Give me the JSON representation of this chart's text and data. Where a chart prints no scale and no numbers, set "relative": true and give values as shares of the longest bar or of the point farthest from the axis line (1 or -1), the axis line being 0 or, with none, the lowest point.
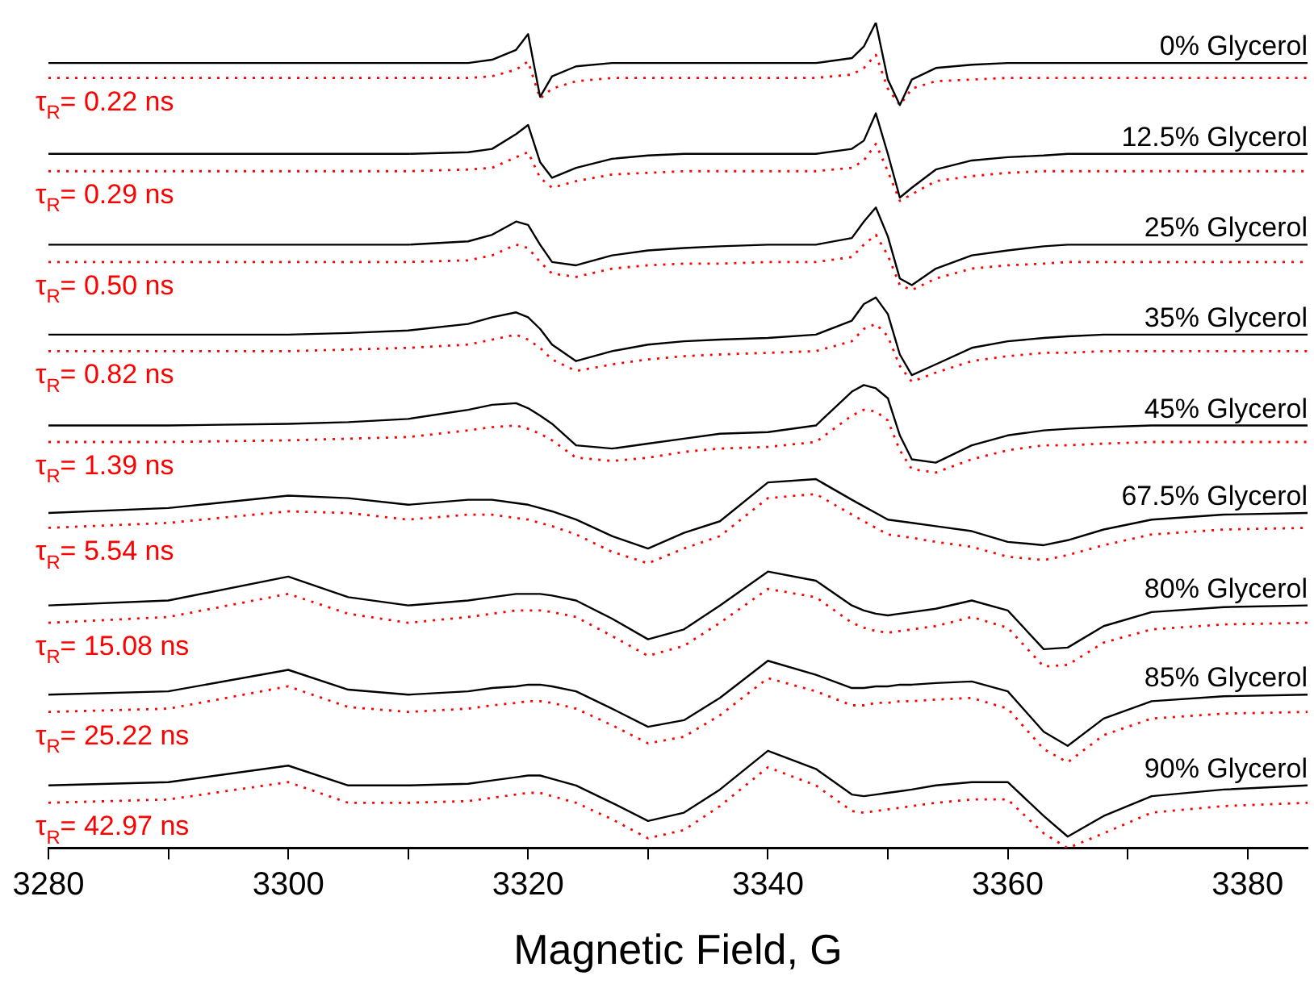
{
  "chart_data": {
    "type": "line",
    "relative": true,
    "xlabel": "Magnetic Field, G",
    "xlim": [
      3280,
      3385
    ],
    "xticks": [
      3280,
      {
        "value": 3290,
        "label": null
      },
      3300,
      {
        "value": 3310,
        "label": null
      },
      3320,
      {
        "value": 3330,
        "label": null
      },
      3340,
      {
        "value": 3350,
        "label": null
      },
      3360,
      {
        "value": 3370,
        "label": null
      },
      3380
    ],
    "x": [
      3280,
      3290,
      3300,
      3305,
      3310,
      3315,
      3317,
      3319,
      3320,
      3321,
      3322,
      3324,
      3327,
      3330,
      3333,
      3336,
      3340,
      3344,
      3347,
      3348,
      3349,
      3350,
      3351,
      3352,
      3354,
      3357,
      3360,
      3363,
      3365,
      3368,
      3372,
      3378,
      3385
    ],
    "legend": false,
    "grid": false,
    "marker": "none",
    "series": [
      {
        "name": "0% Glycerol",
        "color": "#000000",
        "line_style": "solid",
        "values": [
          0.951,
          0.951,
          0.951,
          0.951,
          0.951,
          0.951,
          0.955,
          0.967,
          0.986,
          0.91,
          0.935,
          0.947,
          0.951,
          0.951,
          0.951,
          0.951,
          0.951,
          0.951,
          0.957,
          0.971,
          1,
          0.931,
          0.9,
          0.931,
          0.945,
          0.949,
          0.951,
          0.951,
          0.951,
          0.951,
          0.951,
          0.951,
          0.951
        ]
      },
      {
        "name": "τ$_{R}$= 0.22 ns",
        "color": "#ff0000",
        "line_style": "dotted",
        "values": [
          0.933,
          0.933,
          0.933,
          0.933,
          0.933,
          0.933,
          0.935,
          0.943,
          0.953,
          0.908,
          0.92,
          0.929,
          0.933,
          0.933,
          0.933,
          0.933,
          0.933,
          0.933,
          0.937,
          0.945,
          0.961,
          0.92,
          0.9,
          0.92,
          0.929,
          0.931,
          0.933,
          0.933,
          0.933,
          0.933,
          0.933,
          0.933,
          0.933
        ]
      },
      {
        "name": "12.5% Glycerol",
        "color": "#000000",
        "line_style": "solid",
        "values": [
          0.841,
          0.841,
          0.841,
          0.841,
          0.841,
          0.843,
          0.847,
          0.865,
          0.876,
          0.831,
          0.812,
          0.824,
          0.835,
          0.839,
          0.841,
          0.841,
          0.841,
          0.841,
          0.847,
          0.857,
          0.89,
          0.841,
          0.788,
          0.8,
          0.822,
          0.833,
          0.837,
          0.839,
          0.841,
          0.841,
          0.841,
          0.841,
          0.841
        ]
      },
      {
        "name": "τ$_{R}$= 0.29 ns",
        "color": "#ff0000",
        "line_style": "dotted",
        "values": [
          0.82,
          0.82,
          0.82,
          0.82,
          0.82,
          0.822,
          0.824,
          0.837,
          0.843,
          0.812,
          0.8,
          0.808,
          0.816,
          0.818,
          0.82,
          0.82,
          0.82,
          0.82,
          0.824,
          0.833,
          0.853,
          0.82,
          0.784,
          0.792,
          0.808,
          0.814,
          0.818,
          0.82,
          0.82,
          0.82,
          0.82,
          0.82,
          0.82
        ]
      },
      {
        "name": "25% Glycerol",
        "color": "#000000",
        "line_style": "solid",
        "values": [
          0.731,
          0.731,
          0.731,
          0.731,
          0.731,
          0.735,
          0.743,
          0.759,
          0.755,
          0.731,
          0.71,
          0.706,
          0.718,
          0.724,
          0.727,
          0.729,
          0.731,
          0.731,
          0.739,
          0.759,
          0.776,
          0.741,
          0.69,
          0.682,
          0.702,
          0.718,
          0.724,
          0.729,
          0.731,
          0.731,
          0.731,
          0.731,
          0.731
        ]
      },
      {
        "name": "τ$_{R}$= 0.50 ns",
        "color": "#ff0000",
        "line_style": "dotted",
        "values": [
          0.71,
          0.71,
          0.71,
          0.71,
          0.71,
          0.712,
          0.718,
          0.731,
          0.727,
          0.71,
          0.696,
          0.692,
          0.702,
          0.706,
          0.708,
          0.708,
          0.71,
          0.71,
          0.716,
          0.731,
          0.743,
          0.718,
          0.682,
          0.676,
          0.69,
          0.702,
          0.706,
          0.708,
          0.71,
          0.71,
          0.71,
          0.71,
          0.71
        ]
      },
      {
        "name": "35% Glycerol",
        "color": "#000000",
        "line_style": "solid",
        "values": [
          0.622,
          0.622,
          0.622,
          0.624,
          0.627,
          0.635,
          0.643,
          0.649,
          0.643,
          0.629,
          0.61,
          0.59,
          0.602,
          0.61,
          0.614,
          0.616,
          0.618,
          0.622,
          0.639,
          0.659,
          0.667,
          0.647,
          0.598,
          0.573,
          0.586,
          0.606,
          0.614,
          0.618,
          0.62,
          0.622,
          0.622,
          0.622,
          0.622
        ]
      },
      {
        "name": "τ$_{R}$= 0.82 ns",
        "color": "#ff0000",
        "line_style": "dotted",
        "values": [
          0.602,
          0.602,
          0.602,
          0.604,
          0.606,
          0.61,
          0.616,
          0.622,
          0.616,
          0.606,
          0.592,
          0.578,
          0.586,
          0.592,
          0.596,
          0.598,
          0.6,
          0.602,
          0.614,
          0.629,
          0.635,
          0.62,
          0.584,
          0.565,
          0.576,
          0.59,
          0.596,
          0.6,
          0.6,
          0.602,
          0.602,
          0.602,
          0.602
        ]
      },
      {
        "name": "45% Glycerol",
        "color": "#000000",
        "line_style": "solid",
        "values": [
          0.512,
          0.512,
          0.514,
          0.516,
          0.52,
          0.531,
          0.537,
          0.539,
          0.533,
          0.524,
          0.514,
          0.488,
          0.484,
          0.49,
          0.496,
          0.502,
          0.504,
          0.512,
          0.553,
          0.561,
          0.557,
          0.545,
          0.5,
          0.471,
          0.467,
          0.488,
          0.5,
          0.506,
          0.508,
          0.51,
          0.512,
          0.512,
          0.512
        ]
      },
      {
        "name": "τ$_{R}$= 1.39 ns",
        "color": "#ff0000",
        "line_style": "dotted",
        "values": [
          0.492,
          0.492,
          0.494,
          0.496,
          0.498,
          0.506,
          0.51,
          0.512,
          0.508,
          0.502,
          0.494,
          0.473,
          0.469,
          0.473,
          0.48,
          0.484,
          0.486,
          0.492,
          0.524,
          0.531,
          0.529,
          0.518,
          0.482,
          0.459,
          0.455,
          0.471,
          0.482,
          0.488,
          0.488,
          0.49,
          0.492,
          0.492,
          0.492
        ]
      },
      {
        "name": "67.5% Glycerol",
        "color": "#000000",
        "line_style": "solid",
        "values": [
          0.406,
          0.412,
          0.427,
          0.424,
          0.416,
          0.422,
          0.422,
          0.418,
          0.416,
          0.412,
          0.408,
          0.398,
          0.378,
          0.363,
          0.382,
          0.396,
          0.443,
          0.447,
          0.422,
          0.414,
          0.406,
          0.398,
          0.396,
          0.394,
          0.39,
          0.384,
          0.371,
          0.367,
          0.373,
          0.386,
          0.398,
          0.404,
          0.406
        ]
      },
      {
        "name": "τ$_{R}$= 5.54 ns",
        "color": "#ff0000",
        "line_style": "dotted",
        "values": [
          0.388,
          0.394,
          0.408,
          0.406,
          0.398,
          0.404,
          0.404,
          0.4,
          0.398,
          0.394,
          0.39,
          0.38,
          0.359,
          0.345,
          0.363,
          0.378,
          0.424,
          0.429,
          0.404,
          0.396,
          0.388,
          0.38,
          0.378,
          0.376,
          0.371,
          0.365,
          0.353,
          0.349,
          0.355,
          0.367,
          0.38,
          0.386,
          0.388
        ]
      },
      {
        "name": "80% Glycerol",
        "color": "#000000",
        "line_style": "solid",
        "values": [
          0.294,
          0.3,
          0.329,
          0.304,
          0.294,
          0.3,
          0.304,
          0.308,
          0.308,
          0.308,
          0.306,
          0.3,
          0.278,
          0.253,
          0.265,
          0.294,
          0.335,
          0.324,
          0.294,
          0.288,
          0.284,
          0.282,
          0.284,
          0.286,
          0.29,
          0.3,
          0.288,
          0.241,
          0.243,
          0.269,
          0.286,
          0.292,
          0.294
        ]
      },
      {
        "name": "τ$_{R}$= 15.08 ns",
        "color": "#ff0000",
        "line_style": "dotted",
        "values": [
          0.273,
          0.28,
          0.308,
          0.284,
          0.273,
          0.28,
          0.284,
          0.288,
          0.288,
          0.288,
          0.286,
          0.28,
          0.257,
          0.233,
          0.245,
          0.273,
          0.314,
          0.304,
          0.273,
          0.267,
          0.263,
          0.261,
          0.263,
          0.265,
          0.269,
          0.28,
          0.267,
          0.22,
          0.222,
          0.249,
          0.265,
          0.271,
          0.273
        ]
      },
      {
        "name": "85% Glycerol",
        "color": "#000000",
        "line_style": "solid",
        "values": [
          0.186,
          0.19,
          0.216,
          0.192,
          0.186,
          0.19,
          0.194,
          0.196,
          0.198,
          0.198,
          0.196,
          0.19,
          0.169,
          0.147,
          0.155,
          0.182,
          0.227,
          0.21,
          0.194,
          0.194,
          0.196,
          0.196,
          0.198,
          0.198,
          0.2,
          0.202,
          0.19,
          0.141,
          0.124,
          0.157,
          0.178,
          0.184,
          0.186
        ]
      },
      {
        "name": "τ$_{R}$= 25.22 ns",
        "color": "#ff0000",
        "line_style": "dotted",
        "values": [
          0.165,
          0.169,
          0.196,
          0.171,
          0.165,
          0.169,
          0.173,
          0.176,
          0.178,
          0.178,
          0.176,
          0.169,
          0.149,
          0.127,
          0.135,
          0.161,
          0.206,
          0.19,
          0.173,
          0.173,
          0.176,
          0.176,
          0.178,
          0.178,
          0.18,
          0.182,
          0.169,
          0.12,
          0.104,
          0.137,
          0.157,
          0.163,
          0.165
        ]
      },
      {
        "name": "90% Glycerol",
        "color": "#000000",
        "line_style": "solid",
        "values": [
          0.076,
          0.08,
          0.1,
          0.076,
          0.076,
          0.078,
          0.082,
          0.086,
          0.088,
          0.088,
          0.084,
          0.076,
          0.055,
          0.033,
          0.043,
          0.071,
          0.118,
          0.096,
          0.065,
          0.063,
          0.065,
          0.067,
          0.069,
          0.071,
          0.076,
          0.08,
          0.08,
          0.039,
          0.014,
          0.039,
          0.063,
          0.071,
          0.076
        ]
      },
      {
        "name": "τ$_{R}$= 42.97 ns",
        "color": "#ff0000",
        "line_style": "dotted",
        "values": [
          0.055,
          0.059,
          0.08,
          0.055,
          0.055,
          0.057,
          0.061,
          0.065,
          0.067,
          0.067,
          0.063,
          0.055,
          0.035,
          0.012,
          0.022,
          0.051,
          0.098,
          0.076,
          0.045,
          0.043,
          0.045,
          0.047,
          0.049,
          0.051,
          0.055,
          0.059,
          0.059,
          0.018,
          0,
          0.018,
          0.043,
          0.051,
          0.055
        ]
      }
    ]
  }
}
